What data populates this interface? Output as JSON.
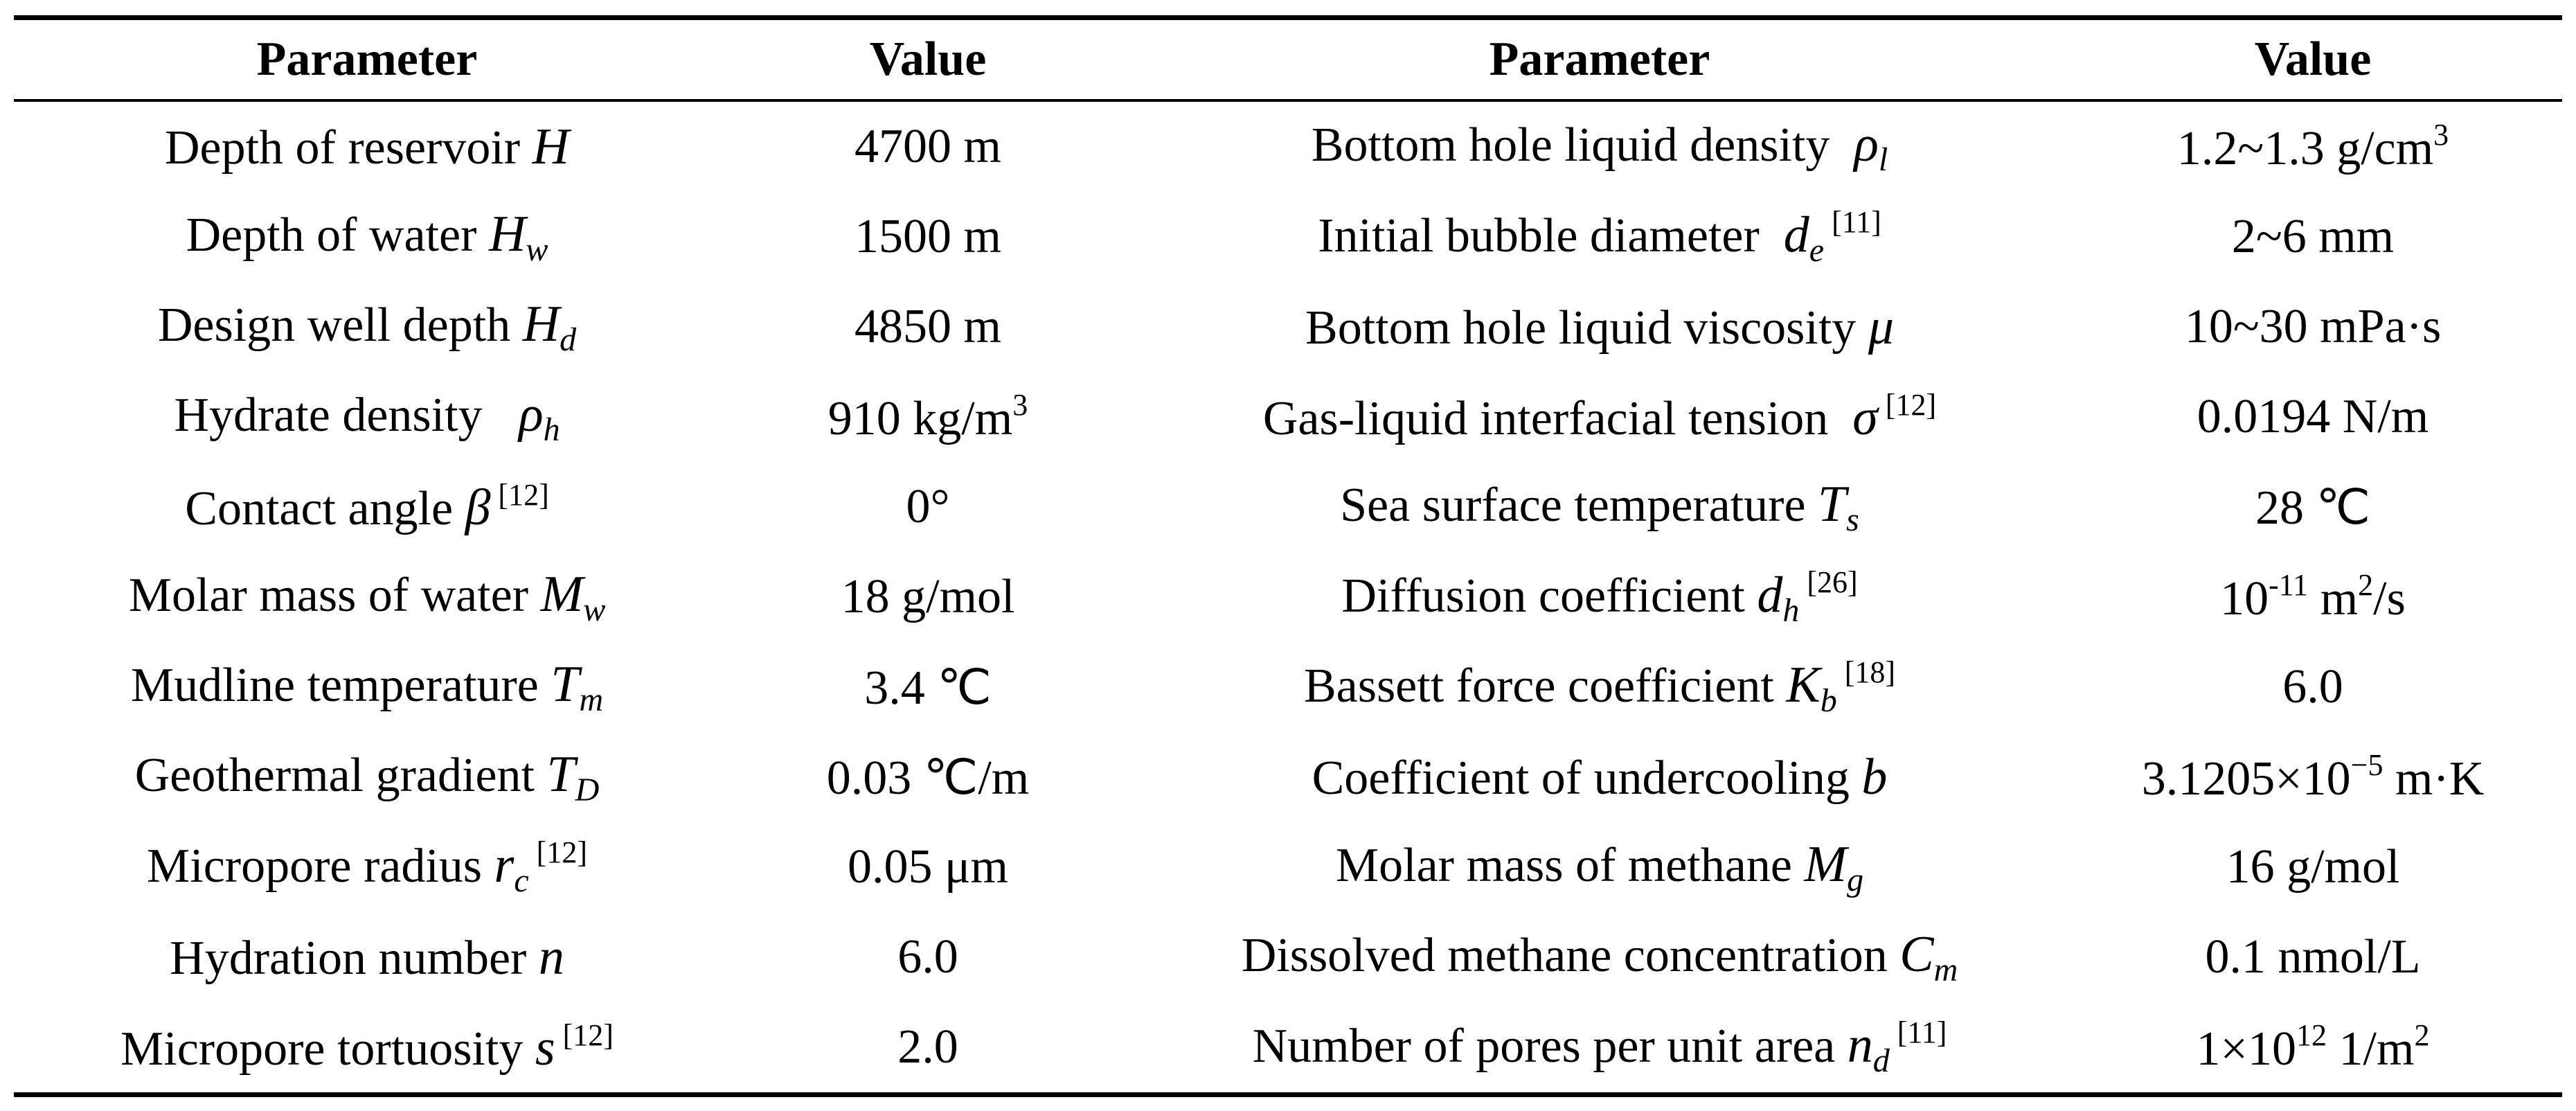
{
  "table": {
    "header": [
      "Parameter",
      "Value",
      "Parameter",
      "Value"
    ],
    "rows": [
      [
        [
          {
            "text": "Depth of reservoir "
          },
          {
            "text": "H",
            "style": "i"
          }
        ],
        [
          {
            "text": "4700 m"
          }
        ],
        [
          {
            "text": "Bottom hole liquid density  "
          },
          {
            "text": "ρ",
            "style": "i"
          },
          {
            "text": "l",
            "style": "sub"
          }
        ],
        [
          {
            "text": "1.2~1.3 g/cm"
          },
          {
            "text": "3",
            "style": "sup"
          }
        ]
      ],
      [
        [
          {
            "text": "Depth of water "
          },
          {
            "text": "H",
            "style": "i"
          },
          {
            "text": "w",
            "style": "sub"
          }
        ],
        [
          {
            "text": "1500 m"
          }
        ],
        [
          {
            "text": "Initial bubble diameter  "
          },
          {
            "text": "d",
            "style": "i"
          },
          {
            "text": "e",
            "style": "sub"
          },
          {
            "text": " [11]",
            "style": "sup"
          }
        ],
        [
          {
            "text": "2~6 mm"
          }
        ]
      ],
      [
        [
          {
            "text": "Design well depth "
          },
          {
            "text": "H",
            "style": "i"
          },
          {
            "text": "d",
            "style": "sub"
          }
        ],
        [
          {
            "text": "4850 m"
          }
        ],
        [
          {
            "text": "Bottom hole liquid viscosity "
          },
          {
            "text": "μ",
            "style": "i"
          }
        ],
        [
          {
            "text": "10~30 mPa·s"
          }
        ]
      ],
      [
        [
          {
            "text": "Hydrate density   "
          },
          {
            "text": "ρ",
            "style": "i"
          },
          {
            "text": "h",
            "style": "sub"
          }
        ],
        [
          {
            "text": "910 kg/m"
          },
          {
            "text": "3",
            "style": "sup"
          }
        ],
        [
          {
            "text": "Gas-liquid interfacial tension  "
          },
          {
            "text": "σ",
            "style": "i"
          },
          {
            "text": " [12]",
            "style": "sup"
          }
        ],
        [
          {
            "text": "0.0194 N/m"
          }
        ]
      ],
      [
        [
          {
            "text": "Contact angle "
          },
          {
            "text": "β",
            "style": "i"
          },
          {
            "text": " [12]",
            "style": "sup"
          }
        ],
        [
          {
            "text": "0°"
          }
        ],
        [
          {
            "text": "Sea surface temperature "
          },
          {
            "text": "T",
            "style": "i"
          },
          {
            "text": "s",
            "style": "sub"
          }
        ],
        [
          {
            "text": "28 ℃"
          }
        ]
      ],
      [
        [
          {
            "text": "Molar mass of water "
          },
          {
            "text": "M",
            "style": "i"
          },
          {
            "text": "w",
            "style": "sub"
          }
        ],
        [
          {
            "text": "18 g/mol"
          }
        ],
        [
          {
            "text": "Diffusion coefficient "
          },
          {
            "text": "d",
            "style": "i"
          },
          {
            "text": "h",
            "style": "sub"
          },
          {
            "text": " [26]",
            "style": "sup"
          }
        ],
        [
          {
            "text": "10"
          },
          {
            "text": "-11",
            "style": "sup"
          },
          {
            "text": " m"
          },
          {
            "text": "2",
            "style": "sup"
          },
          {
            "text": "/s"
          }
        ]
      ],
      [
        [
          {
            "text": "Mudline temperature "
          },
          {
            "text": "T",
            "style": "i"
          },
          {
            "text": "m",
            "style": "sub"
          }
        ],
        [
          {
            "text": "3.4 ℃"
          }
        ],
        [
          {
            "text": "Bassett force coefficient "
          },
          {
            "text": "K",
            "style": "i"
          },
          {
            "text": "b",
            "style": "sub"
          },
          {
            "text": " [18]",
            "style": "sup"
          }
        ],
        [
          {
            "text": "6.0"
          }
        ]
      ],
      [
        [
          {
            "text": "Geothermal gradient "
          },
          {
            "text": "T",
            "style": "i"
          },
          {
            "text": "D",
            "style": "sub"
          }
        ],
        [
          {
            "text": "0.03 ℃/m"
          }
        ],
        [
          {
            "text": "Coefficient of undercooling "
          },
          {
            "text": "b",
            "style": "i"
          }
        ],
        [
          {
            "text": "3.1205×10"
          },
          {
            "text": "−5",
            "style": "sup"
          },
          {
            "text": " m·K"
          }
        ]
      ],
      [
        [
          {
            "text": "Micropore radius "
          },
          {
            "text": "r",
            "style": "i"
          },
          {
            "text": "c",
            "style": "sub"
          },
          {
            "text": " [12]",
            "style": "sup"
          }
        ],
        [
          {
            "text": "0.05 μm"
          }
        ],
        [
          {
            "text": "Molar mass of methane "
          },
          {
            "text": "M",
            "style": "i"
          },
          {
            "text": "g",
            "style": "sub"
          }
        ],
        [
          {
            "text": "16 g/mol"
          }
        ]
      ],
      [
        [
          {
            "text": "Hydration number "
          },
          {
            "text": "n",
            "style": "i"
          }
        ],
        [
          {
            "text": "6.0"
          }
        ],
        [
          {
            "text": "Dissolved methane concentration "
          },
          {
            "text": "C",
            "style": "i"
          },
          {
            "text": "m",
            "style": "sub"
          }
        ],
        [
          {
            "text": "0.1 nmol/L"
          }
        ]
      ],
      [
        [
          {
            "text": "Micropore tortuosity "
          },
          {
            "text": "s",
            "style": "i"
          },
          {
            "text": " [12]",
            "style": "sup"
          }
        ],
        [
          {
            "text": "2.0"
          }
        ],
        [
          {
            "text": "Number of pores per unit area "
          },
          {
            "text": "n",
            "style": "i"
          },
          {
            "text": "d",
            "style": "sub"
          },
          {
            "text": " [11]",
            "style": "sup"
          }
        ],
        [
          {
            "text": "1×10"
          },
          {
            "text": "12",
            "style": "sup"
          },
          {
            "text": " 1/m"
          },
          {
            "text": "2",
            "style": "sup"
          }
        ]
      ]
    ]
  }
}
